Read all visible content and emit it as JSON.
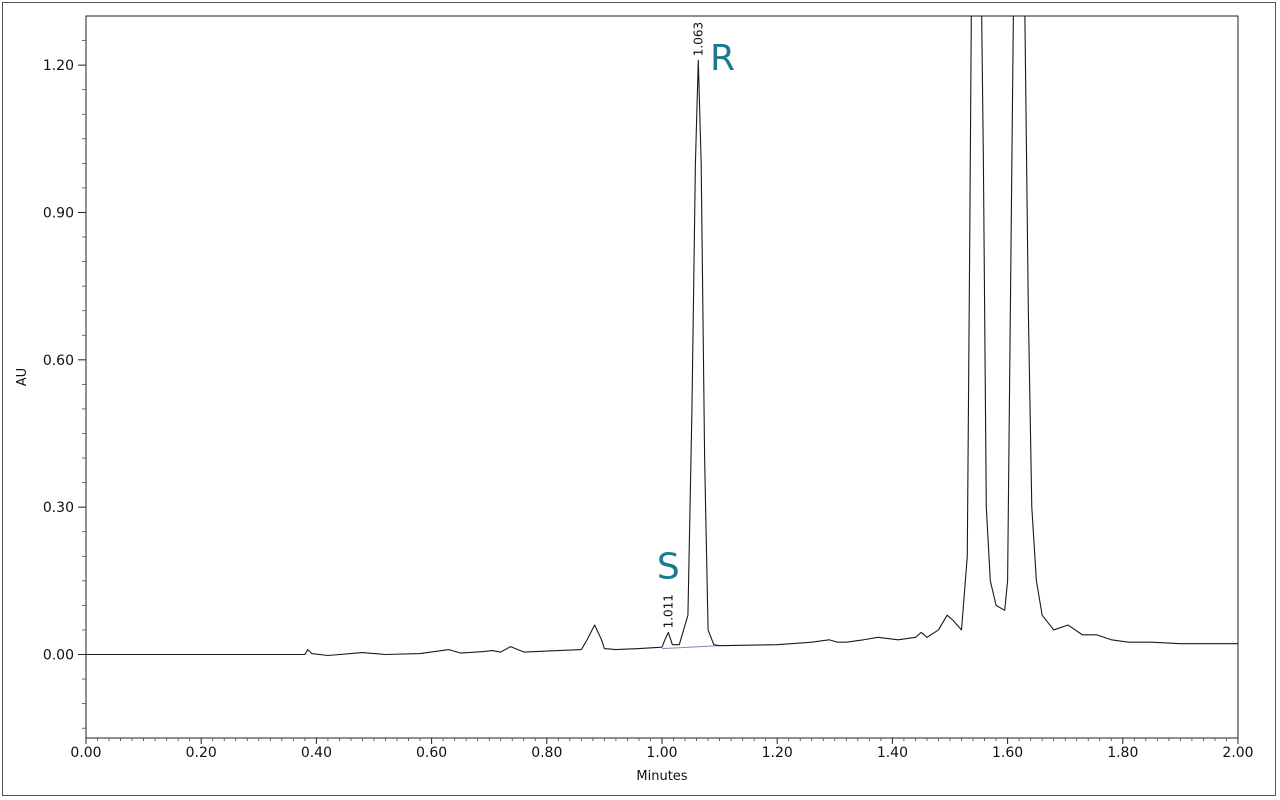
{
  "chart_data": {
    "type": "line",
    "xlabel": "Minutes",
    "ylabel": "AU",
    "xlim": [
      0.0,
      2.0
    ],
    "ylim": [
      -0.17,
      1.3
    ],
    "grid": false,
    "x_ticks": [
      "0.00",
      "0.20",
      "0.40",
      "0.60",
      "0.80",
      "1.00",
      "1.20",
      "1.40",
      "1.60",
      "1.80",
      "2.00"
    ],
    "y_ticks": [
      "0.00",
      "0.30",
      "0.60",
      "0.90",
      "1.20"
    ],
    "series": [
      {
        "color": "#1a1a1a",
        "x": [
          0.0,
          0.38,
          0.385,
          0.392,
          0.42,
          0.48,
          0.52,
          0.58,
          0.63,
          0.65,
          0.69,
          0.705,
          0.72,
          0.737,
          0.76,
          0.86,
          0.87,
          0.883,
          0.895,
          0.9,
          0.92,
          0.96,
          1.0,
          1.005,
          1.011,
          1.018,
          1.03,
          1.045,
          1.052,
          1.058,
          1.063,
          1.068,
          1.074,
          1.08,
          1.09,
          1.1,
          1.2,
          1.26,
          1.29,
          1.305,
          1.32,
          1.35,
          1.375,
          1.41,
          1.44,
          1.45,
          1.46,
          1.48,
          1.495,
          1.505,
          1.52,
          1.53,
          1.534,
          1.537,
          1.54,
          1.555,
          1.558,
          1.563,
          1.57,
          1.58,
          1.595,
          1.6,
          1.61,
          1.615,
          1.63,
          1.636,
          1.642,
          1.65,
          1.66,
          1.68,
          1.705,
          1.73,
          1.755,
          1.78,
          1.81,
          1.85,
          1.9,
          2.0
        ],
        "y": [
          0.0,
          0.0,
          0.01,
          0.002,
          -0.002,
          0.004,
          0.0,
          0.002,
          0.01,
          0.003,
          0.006,
          0.008,
          0.005,
          0.016,
          0.005,
          0.01,
          0.03,
          0.06,
          0.03,
          0.012,
          0.01,
          0.012,
          0.015,
          0.03,
          0.045,
          0.02,
          0.02,
          0.08,
          0.5,
          1.0,
          1.21,
          1.0,
          0.4,
          0.05,
          0.02,
          0.018,
          0.02,
          0.025,
          0.03,
          0.025,
          0.025,
          0.03,
          0.035,
          0.03,
          0.035,
          0.045,
          0.035,
          0.05,
          0.08,
          0.07,
          0.05,
          0.2,
          0.8,
          1.3,
          1.3,
          1.3,
          1.0,
          0.3,
          0.15,
          0.1,
          0.09,
          0.15,
          1.3,
          1.3,
          1.3,
          0.7,
          0.3,
          0.15,
          0.08,
          0.05,
          0.06,
          0.04,
          0.04,
          0.03,
          0.025,
          0.025,
          0.022,
          0.022
        ]
      }
    ],
    "peak_labels": [
      {
        "x": 1.011,
        "y": 0.045,
        "text": "1.011"
      },
      {
        "x": 1.063,
        "y": 1.21,
        "text": "1.063"
      }
    ],
    "annotations": [
      {
        "x": 1.011,
        "y": 0.155,
        "text": "S"
      },
      {
        "x": 1.105,
        "y": 1.19,
        "text": "R"
      }
    ]
  }
}
